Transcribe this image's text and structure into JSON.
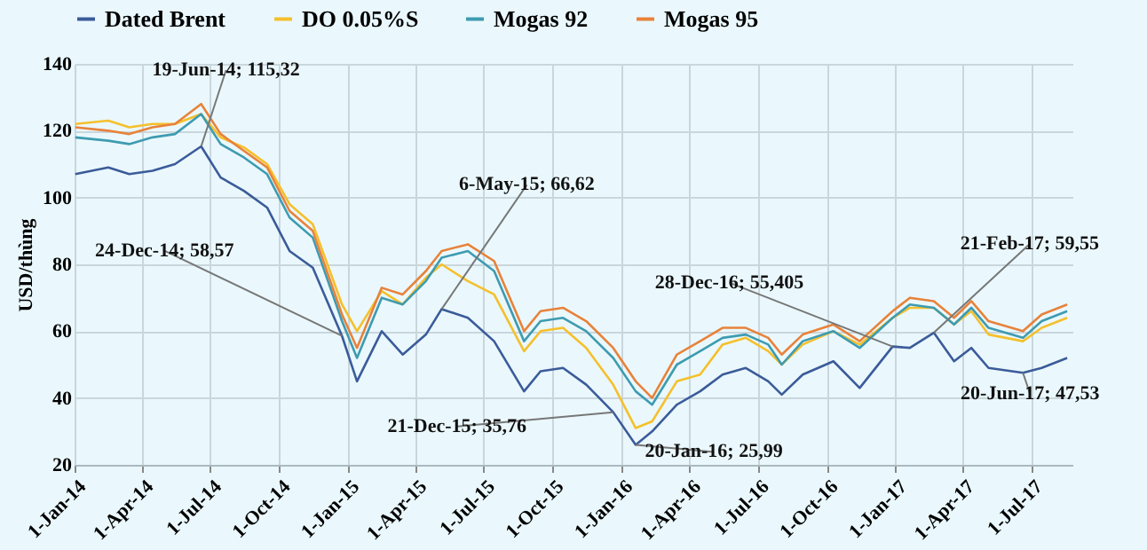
{
  "chart_data": {
    "type": "line",
    "ylabel": "USD/thùng",
    "legend": "top",
    "grid": true,
    "marker": "none",
    "line_style": "solid",
    "ylim": [
      20,
      140
    ],
    "yticks": [
      20,
      40,
      60,
      80,
      100,
      120,
      140
    ],
    "xlim": [
      "2014-01-01",
      "2017-08-25"
    ],
    "xticks": [
      {
        "value": "2014-01-01",
        "label": "1-Jan-14"
      },
      {
        "value": "2014-04-01",
        "label": "1-Apr-14"
      },
      {
        "value": "2014-07-01",
        "label": "1-Jul-14"
      },
      {
        "value": "2014-10-01",
        "label": "1-Oct-14"
      },
      {
        "value": "2015-01-01",
        "label": "1-Jan-15"
      },
      {
        "value": "2015-04-01",
        "label": "1-Apr-15"
      },
      {
        "value": "2015-07-01",
        "label": "1-Jul-15"
      },
      {
        "value": "2015-10-01",
        "label": "1-Oct-15"
      },
      {
        "value": "2016-01-01",
        "label": "1-Jan-16"
      },
      {
        "value": "2016-04-01",
        "label": "1-Apr-16"
      },
      {
        "value": "2016-07-01",
        "label": "1-Jul-16"
      },
      {
        "value": "2016-10-01",
        "label": "1-Oct-16"
      },
      {
        "value": "2017-01-01",
        "label": "1-Jan-17"
      },
      {
        "value": "2017-04-01",
        "label": "1-Apr-17"
      },
      {
        "value": "2017-07-01",
        "label": "1-Jul-17"
      }
    ],
    "x": [
      "2014-01-02",
      "2014-02-15",
      "2014-03-15",
      "2014-04-15",
      "2014-05-15",
      "2014-06-19",
      "2014-07-15",
      "2014-08-15",
      "2014-09-15",
      "2014-10-15",
      "2014-11-15",
      "2014-12-24",
      "2015-01-13",
      "2015-02-15",
      "2015-03-15",
      "2015-04-15",
      "2015-05-06",
      "2015-06-10",
      "2015-07-15",
      "2015-08-24",
      "2015-09-15",
      "2015-10-15",
      "2015-11-15",
      "2015-12-21",
      "2016-01-20",
      "2016-02-11",
      "2016-03-15",
      "2016-04-15",
      "2016-05-15",
      "2016-06-15",
      "2016-07-15",
      "2016-08-02",
      "2016-08-30",
      "2016-10-10",
      "2016-11-14",
      "2016-12-28",
      "2017-01-20",
      "2017-02-21",
      "2017-03-20",
      "2017-04-12",
      "2017-05-05",
      "2017-06-20",
      "2017-07-15",
      "2017-08-18"
    ],
    "series": [
      {
        "name": "Dated Brent",
        "color": "#3b5b9a",
        "values": [
          107,
          109,
          107,
          108,
          110,
          115.32,
          106,
          102,
          97,
          84,
          79,
          58.57,
          45,
          60,
          53,
          59,
          66.62,
          64,
          57,
          42,
          48,
          49,
          44,
          35.76,
          25.99,
          30,
          38,
          42,
          47,
          49,
          45,
          41,
          47,
          51,
          43,
          55.405,
          55,
          59.55,
          51,
          55,
          49,
          47.53,
          49,
          52
        ]
      },
      {
        "name": "DO 0.05%S",
        "color": "#f5c02c",
        "values": [
          122,
          123,
          121,
          122,
          122,
          125,
          118,
          115,
          110,
          98,
          92,
          68,
          60,
          72,
          68,
          76,
          80,
          75,
          71,
          54,
          60,
          61,
          55,
          44,
          31,
          33,
          45,
          47,
          56,
          58,
          54,
          50,
          56,
          60,
          56,
          64,
          67,
          67,
          62,
          66,
          59,
          57,
          61,
          64
        ]
      },
      {
        "name": "Mogas 92",
        "color": "#3e9bb0",
        "values": [
          118,
          117,
          116,
          118,
          119,
          125,
          116,
          112,
          107,
          94,
          88,
          63,
          52,
          70,
          68,
          75,
          82,
          84,
          78,
          57,
          63,
          64,
          60,
          52,
          42,
          38,
          50,
          54,
          58,
          59,
          56,
          50,
          57,
          60,
          55,
          64,
          68,
          67,
          62,
          67,
          61,
          58,
          63,
          66
        ]
      },
      {
        "name": "Mogas 95",
        "color": "#e8823a",
        "values": [
          121,
          120,
          119,
          121,
          122,
          128,
          119,
          114,
          109,
          96,
          90,
          65,
          55,
          73,
          71,
          78,
          84,
          86,
          81,
          60,
          66,
          67,
          63,
          55,
          45,
          40,
          53,
          57,
          61,
          61,
          58,
          53,
          59,
          62,
          57,
          66,
          70,
          69,
          64,
          69,
          63,
          60,
          65,
          68
        ]
      }
    ],
    "annotations": [
      {
        "text": "19-Jun-14; 115,32",
        "x": "2014-06-19",
        "y": 115.32
      },
      {
        "text": "24-Dec-14; 58,57",
        "x": "2014-12-24",
        "y": 58.57
      },
      {
        "text": "6-May-15; 66,62",
        "x": "2015-05-06",
        "y": 66.62
      },
      {
        "text": "21-Dec-15; 35,76",
        "x": "2015-12-21",
        "y": 35.76
      },
      {
        "text": "20-Jan-16; 25,99",
        "x": "2016-01-20",
        "y": 25.99
      },
      {
        "text": "28-Dec-16; 55,405",
        "x": "2016-12-28",
        "y": 55.405
      },
      {
        "text": "21-Feb-17; 59,55",
        "x": "2017-02-21",
        "y": 59.55
      },
      {
        "text": "20-Jun-17; 47,53",
        "x": "2017-06-20",
        "y": 47.53
      }
    ]
  }
}
